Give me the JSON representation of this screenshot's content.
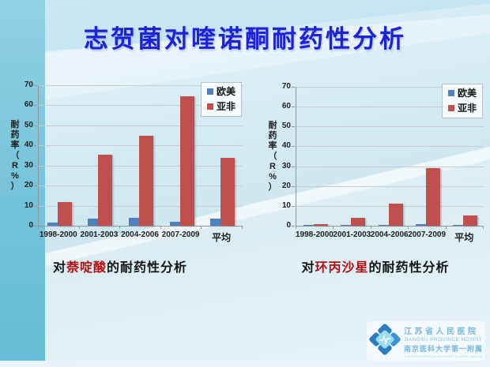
{
  "slide": {
    "title": "志贺菌对喹诺酮耐药性分析"
  },
  "colors": {
    "title_blue": "#1C22D8",
    "europe_america_blue": "#4F81BD",
    "asia_africa_red": "#C0504D",
    "drug_name_red": "#B01010"
  },
  "chart_data": [
    {
      "type": "bar",
      "title": "对萘啶酸的耐药性分析",
      "categories": [
        "1998-2000",
        "2001-2003",
        "2004-2006",
        "2007-2009",
        "平均"
      ],
      "series": [
        {
          "name": "欧美",
          "color": "#4F81BD",
          "values": [
            1.5,
            3.5,
            4,
            2,
            3.5
          ]
        },
        {
          "name": "亚非",
          "color": "#C0504D",
          "values": [
            12,
            35.5,
            45,
            64.5,
            34
          ]
        }
      ],
      "xlabel": "",
      "ylabel": "耐药率（R%）",
      "ylim": [
        0,
        70
      ],
      "ytick_step": 10,
      "grid": true,
      "legend_position": "top-right"
    },
    {
      "type": "bar",
      "title": "对环丙沙星的耐药性分析",
      "categories": [
        "1998-2000",
        "2001-2003",
        "2004-2006",
        "2007-2009",
        "平均"
      ],
      "series": [
        {
          "name": "欧美",
          "color": "#4F81BD",
          "values": [
            0.2,
            0.5,
            0.2,
            0.8,
            0.3
          ]
        },
        {
          "name": "亚非",
          "color": "#C0504D",
          "values": [
            0.8,
            4,
            11,
            29,
            5
          ]
        }
      ],
      "xlabel": "",
      "ylabel": "耐药率（R%）",
      "ylim": [
        0,
        70
      ],
      "ytick_step": 10,
      "grid": true,
      "legend_position": "top-right"
    }
  ],
  "captions": [
    {
      "prefix": "对",
      "drug": "萘啶酸",
      "suffix": "的耐药性分析"
    },
    {
      "prefix": "对",
      "drug": "环丙沙星",
      "suffix": "的耐药性分析"
    }
  ],
  "logo": {
    "line1": "江苏省人民医院",
    "line2": "JIANGSU PROVINCE HOSPITAL",
    "line3": "南京医科大学第一附属医院",
    "line4": "THE FIRST AFFILIATED HOSPITAL WITH NANJING MEDICAL UNIVERSITY"
  }
}
